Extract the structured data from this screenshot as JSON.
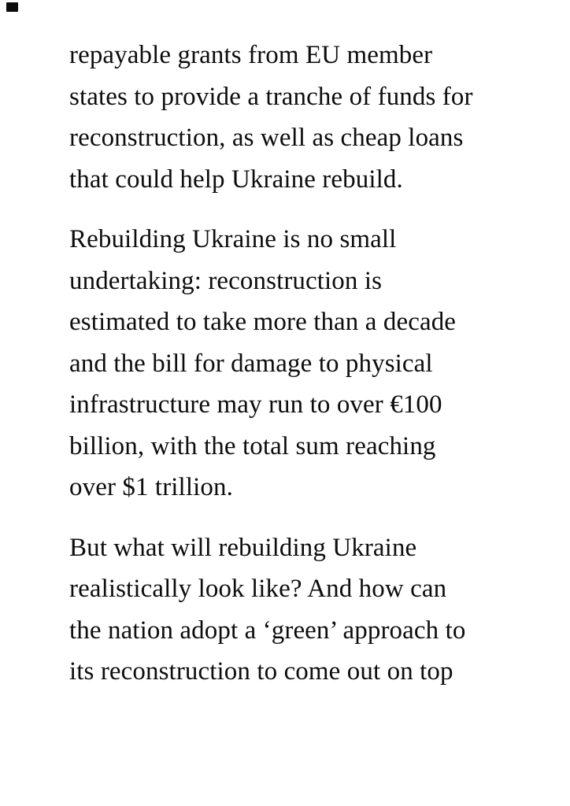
{
  "page": {
    "background_color": "#ffffff",
    "text_color": "#0d0d0d",
    "corner_mark_color": "#0b0b0b"
  },
  "article": {
    "paragraphs": [
      {
        "lines": [
          "repayable grants from EU member",
          "states to provide a tranche of funds for",
          "reconstruction, as well as cheap loans",
          "that could help Ukraine rebuild."
        ]
      },
      {
        "lines": [
          "Rebuilding Ukraine is no small",
          "undertaking: reconstruction is",
          "estimated to take more than a decade",
          "and the bill for damage to physical",
          "infrastructure may run to over €100",
          "billion, with the total sum reaching",
          "over $1 trillion."
        ]
      },
      {
        "lines": [
          "But what will rebuilding Ukraine",
          "realistically look like? And how can",
          "the nation adopt a ‘green’ approach to",
          "its reconstruction to come out on top"
        ]
      }
    ]
  }
}
